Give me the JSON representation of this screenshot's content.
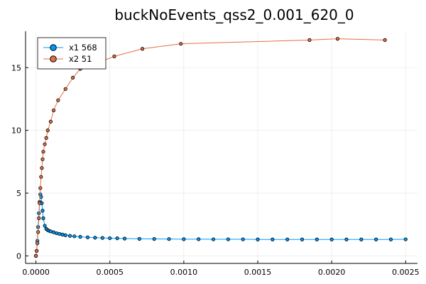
{
  "chart_data": {
    "type": "line",
    "title": "buckNoEvents_qss2_0.001_620_0",
    "xlabel": "",
    "ylabel": "",
    "xlim": [
      -7e-05,
      0.00258
    ],
    "ylim": [
      -0.6,
      17.9
    ],
    "xticks": [
      0.0,
      0.0005,
      0.001,
      0.0015,
      0.002,
      0.0025
    ],
    "xtick_labels": [
      "0.0000",
      "0.0005",
      "0.0010",
      "0.0015",
      "0.0020",
      "0.0025"
    ],
    "yticks": [
      0,
      5,
      10,
      15
    ],
    "ytick_labels": [
      "0",
      "5",
      "10",
      "15"
    ],
    "grid": true,
    "legend_position": "top-left",
    "series": [
      {
        "name": "x1 568",
        "color": "#009af9",
        "x": [
          0.0,
          5e-06,
          1e-05,
          1.5e-05,
          2e-05,
          2.5e-05,
          3e-05,
          3.5e-05,
          4e-05,
          4.5e-05,
          5e-05,
          6e-05,
          7e-05,
          8e-05,
          9e-05,
          0.0001,
          0.00012,
          0.00014,
          0.00016,
          0.00018,
          0.0002,
          0.00023,
          0.00026,
          0.0003,
          0.00035,
          0.0004,
          0.00045,
          0.0005,
          0.00055,
          0.0006,
          0.0007,
          0.0008,
          0.0009,
          0.001,
          0.0011,
          0.0012,
          0.0013,
          0.0014,
          0.0015,
          0.0016,
          0.0017,
          0.0018,
          0.0019,
          0.002,
          0.0021,
          0.0022,
          0.0023,
          0.0024,
          0.0025
        ],
        "values": [
          0.0,
          0.4,
          1.2,
          2.3,
          3.4,
          4.3,
          4.9,
          4.7,
          4.2,
          3.6,
          3.0,
          2.4,
          2.15,
          2.05,
          2.0,
          1.95,
          1.88,
          1.8,
          1.75,
          1.7,
          1.65,
          1.6,
          1.56,
          1.52,
          1.48,
          1.45,
          1.43,
          1.41,
          1.4,
          1.38,
          1.36,
          1.35,
          1.34,
          1.33,
          1.33,
          1.32,
          1.32,
          1.32,
          1.31,
          1.31,
          1.31,
          1.31,
          1.31,
          1.31,
          1.31,
          1.31,
          1.31,
          1.31,
          1.32
        ]
      },
      {
        "name": "x2 51",
        "color": "#e26f46",
        "x": [
          0.0,
          5e-06,
          1e-05,
          1.5e-05,
          2e-05,
          2.5e-05,
          3e-05,
          3.5e-05,
          4e-05,
          4.5e-05,
          5e-05,
          6e-05,
          7e-05,
          8e-05,
          0.0001,
          0.00012,
          0.00015,
          0.0002,
          0.00025,
          0.0003,
          0.0004,
          0.00053,
          0.00072,
          0.00098,
          0.00185,
          0.00204,
          0.00236
        ],
        "values": [
          0.0,
          0.4,
          1.0,
          1.9,
          3.0,
          4.2,
          5.4,
          6.3,
          7.0,
          7.7,
          8.3,
          8.9,
          9.4,
          10.0,
          10.7,
          11.6,
          12.4,
          13.3,
          14.2,
          14.9,
          15.3,
          15.9,
          16.5,
          16.9,
          17.2,
          17.3,
          17.2
        ]
      }
    ]
  }
}
